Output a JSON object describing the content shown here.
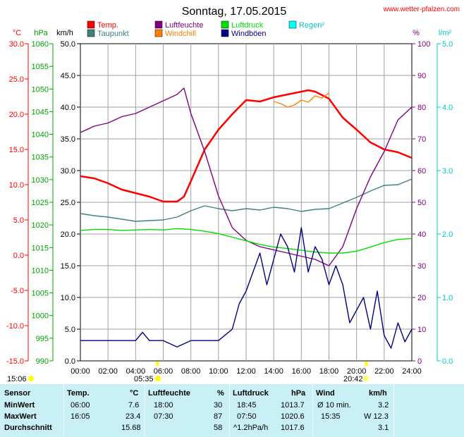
{
  "header": {
    "title": "Sonntag, 17.05.2015",
    "site": "www.wetter-pfalzen.com"
  },
  "axes": {
    "temp": {
      "unit": "°C",
      "min": -15,
      "max": 30,
      "step": 5,
      "color": "#ff0000",
      "ticks": [
        "30.0",
        "25.0",
        "20.0",
        "15.0",
        "10.0",
        "5.0",
        "0.0",
        "-5.0",
        "-10.0",
        "-15.0"
      ]
    },
    "pressure": {
      "unit": "hPa",
      "min": 990,
      "max": 1060,
      "step": 5,
      "color": "#00a000",
      "ticks": [
        "1060",
        "1055",
        "1050",
        "1045",
        "1040",
        "1035",
        "1030",
        "1025",
        "1020",
        "1015",
        "1010",
        "1005",
        "1000",
        "995",
        "990"
      ]
    },
    "wind": {
      "unit": "km/h",
      "min": 0,
      "max": 50,
      "step": 5,
      "color": "#000000",
      "ticks": [
        "50.0",
        "45.0",
        "40.0",
        "35.0",
        "30.0",
        "25.0",
        "20.0",
        "15.0",
        "10.0",
        "5.0",
        "0.0"
      ]
    },
    "humidity": {
      "unit": "%",
      "min": 0,
      "max": 100,
      "step": 10,
      "color": "#800080",
      "ticks": [
        "100",
        "90",
        "80",
        "70",
        "60",
        "50",
        "40",
        "30",
        "20",
        "10",
        "0"
      ]
    },
    "rain": {
      "unit": "l/m²",
      "min": 0,
      "max": 5,
      "step": 1,
      "color": "#00c8c8",
      "ticks": [
        "5.0",
        "4.0",
        "3.0",
        "2.0",
        "1.0",
        "0.0"
      ]
    },
    "x_ticks": [
      "00:00",
      "02:00",
      "04:00",
      "06:00",
      "08:00",
      "10:00",
      "12:00",
      "14:00",
      "16:00",
      "18:00",
      "20:00",
      "22:00",
      "24:00"
    ]
  },
  "legend": [
    {
      "label": "Temp.",
      "color": "#ff0000"
    },
    {
      "label": "Taupunkt",
      "color": "#408080"
    },
    {
      "label": "Luftfeuchte",
      "color": "#800080"
    },
    {
      "label": "Windchill",
      "color": "#ff8000"
    },
    {
      "label": "Luftdruck",
      "color": "#00e000"
    },
    {
      "label": "Windböen",
      "color": "#000080"
    },
    {
      "label": "Regen²",
      "color": "#00ffff"
    }
  ],
  "sun": {
    "sunrise_label": "05:35",
    "sunset_label": "20:42",
    "left_time": "15:06",
    "sunrise_hour": 5.58,
    "sunset_hour": 20.7
  },
  "chart_data": {
    "type": "line",
    "x_unit": "hour of day",
    "xlim": [
      0,
      24
    ],
    "series": [
      {
        "name": "Temp.",
        "axis": "temp",
        "color": "#ff0000",
        "x": [
          0,
          1,
          2,
          3,
          4,
          5,
          6,
          7,
          7.5,
          8,
          9,
          10,
          11,
          12,
          13,
          14,
          15,
          16,
          16.5,
          17,
          18,
          19,
          20,
          21,
          22,
          23,
          24
        ],
        "y": [
          11.2,
          10.9,
          10.2,
          9.3,
          8.8,
          8.3,
          7.6,
          7.6,
          8.3,
          10.5,
          15,
          17.8,
          20,
          22,
          21.8,
          22.4,
          22.8,
          23.2,
          23.4,
          23.2,
          22.2,
          19.5,
          17.8,
          16,
          15,
          14.6,
          13.8
        ]
      },
      {
        "name": "Taupunkt",
        "axis": "temp",
        "color": "#408080",
        "x": [
          0,
          1,
          2,
          3,
          4,
          5,
          6,
          7,
          8,
          9,
          10,
          11,
          12,
          13,
          14,
          15,
          16,
          17,
          18,
          19,
          20,
          21,
          22,
          23,
          24
        ],
        "y": [
          5.9,
          5.6,
          5.4,
          5.1,
          4.8,
          4.9,
          5.0,
          5.4,
          6.3,
          7.0,
          6.6,
          6.3,
          6.6,
          6.4,
          6.8,
          6.6,
          6.2,
          6.5,
          6.6,
          7.4,
          8.2,
          9.1,
          9.9,
          10.0,
          10.8
        ]
      },
      {
        "name": "Windchill",
        "axis": "temp",
        "color": "#ff8000",
        "x": [
          14,
          14.5,
          15,
          15.5,
          16,
          16.5,
          17,
          17.5,
          18
        ],
        "y": [
          21.8,
          21.5,
          21.0,
          21.3,
          22.0,
          21.7,
          22.6,
          22.3,
          23.0
        ]
      },
      {
        "name": "Luftfeuchte",
        "axis": "humidity",
        "color": "#800080",
        "x": [
          0,
          1,
          2,
          3,
          4,
          5,
          6,
          7,
          7.5,
          8,
          9,
          10,
          11,
          12,
          13,
          14,
          15,
          16,
          17,
          18,
          19,
          20,
          21,
          22,
          23,
          24
        ],
        "y": [
          72,
          74,
          75,
          77,
          78,
          80,
          82,
          84,
          86,
          78,
          66,
          52,
          42,
          38,
          36,
          35,
          34,
          33,
          32,
          30,
          36,
          48,
          58,
          66,
          76,
          80
        ]
      },
      {
        "name": "Luftdruck",
        "axis": "pressure",
        "color": "#00e000",
        "x": [
          0,
          1,
          2,
          3,
          4,
          5,
          6,
          7,
          8,
          9,
          10,
          11,
          12,
          13,
          14,
          15,
          16,
          17,
          18,
          19,
          20,
          21,
          22,
          23,
          24
        ],
        "y": [
          1018.8,
          1019.0,
          1019.0,
          1018.8,
          1018.9,
          1019.0,
          1018.9,
          1019.2,
          1019.0,
          1018.6,
          1018.1,
          1017.3,
          1016.5,
          1015.7,
          1015.1,
          1014.8,
          1014.4,
          1014.0,
          1013.8,
          1013.8,
          1014.2,
          1015.1,
          1016.1,
          1016.8,
          1017.0
        ]
      },
      {
        "name": "Windböen",
        "axis": "wind",
        "color": "#000080",
        "x": [
          0,
          1,
          2,
          3,
          4,
          4.5,
          5,
          6,
          7,
          8,
          9,
          10,
          11,
          11.5,
          12,
          12.5,
          13,
          13.5,
          14,
          14.5,
          15,
          15.5,
          16,
          16.5,
          17,
          17.5,
          18,
          18.5,
          19,
          19.5,
          20,
          20.5,
          21,
          21.5,
          22,
          22.5,
          23,
          23.5,
          24
        ],
        "y": [
          3.2,
          3.2,
          3.2,
          3.2,
          3.2,
          4.5,
          3.2,
          3.2,
          2.2,
          3.2,
          3.2,
          3.2,
          5,
          9,
          11,
          14,
          17,
          12,
          16,
          20,
          18,
          14,
          21,
          14,
          18,
          16,
          12,
          15,
          12,
          6,
          8,
          10,
          5,
          11,
          4,
          2,
          6,
          3,
          5
        ]
      }
    ]
  },
  "stats": {
    "headers": {
      "sensor": "Sensor",
      "temp": "Temp.",
      "temp_unit": "°C",
      "hum": "Luftfeuchte",
      "hum_unit": "%",
      "press": "Luftdruck",
      "press_unit": "hPa",
      "wind": "Wind",
      "wind_unit": "km/h"
    },
    "rows": [
      {
        "label": "MinWert",
        "temp_time": "06:00",
        "temp_val": "7.6",
        "hum_time": "18:00",
        "hum_val": "30",
        "press_time": "18:45",
        "press_val": "1013.7",
        "wind_time": "Ø 10 min.",
        "wind_val": "3.2"
      },
      {
        "label": "MaxWert",
        "temp_time": "16:05",
        "temp_val": "23.4",
        "hum_time": "07:30",
        "hum_val": "87",
        "press_time": "07:50",
        "press_val": "1020.6",
        "wind_time": "15:35",
        "wind_val": "W 12.3"
      },
      {
        "label": "Durchschnitt",
        "temp_time": "",
        "temp_val": "15.68",
        "hum_time": "",
        "hum_val": "58",
        "press_time": "^1.2hPa/h",
        "press_val": "1017.6",
        "wind_time": "",
        "wind_val": "3.1"
      }
    ]
  }
}
